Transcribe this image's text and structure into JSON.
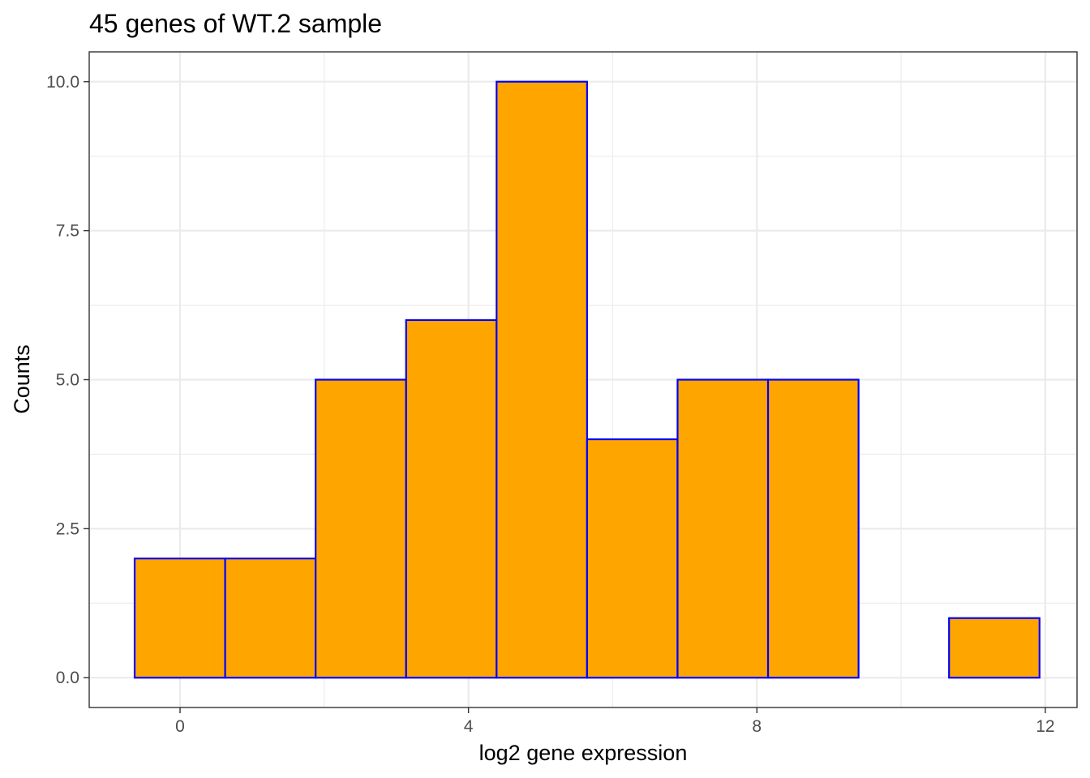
{
  "chart_data": {
    "type": "bar",
    "subtype": "histogram",
    "title": "45 genes of WT.2 sample",
    "xlabel": "log2 gene expression",
    "ylabel": "Counts",
    "x_ticks": [
      0,
      4,
      8,
      12
    ],
    "x_tick_labels": [
      "0",
      "4",
      "8",
      "12"
    ],
    "y_ticks": [
      0,
      2.5,
      5,
      7.5,
      10
    ],
    "y_tick_labels": [
      "0.0",
      "2.5",
      "5.0",
      "7.5",
      "10.0"
    ],
    "xlim": [
      -1.26,
      12.44
    ],
    "ylim": [
      -0.5,
      10.5
    ],
    "grid": true,
    "theme": "bw",
    "bin_width": 1.255,
    "bins": [
      {
        "x_start": -0.63,
        "x_end": 0.625,
        "count": 2
      },
      {
        "x_start": 0.625,
        "x_end": 1.88,
        "count": 2
      },
      {
        "x_start": 1.88,
        "x_end": 3.135,
        "count": 5
      },
      {
        "x_start": 3.135,
        "x_end": 4.39,
        "count": 6
      },
      {
        "x_start": 4.39,
        "x_end": 5.645,
        "count": 10
      },
      {
        "x_start": 5.645,
        "x_end": 6.9,
        "count": 4
      },
      {
        "x_start": 6.9,
        "x_end": 8.155,
        "count": 5
      },
      {
        "x_start": 8.155,
        "x_end": 9.41,
        "count": 5
      },
      {
        "x_start": 9.41,
        "x_end": 10.665,
        "count": 0
      },
      {
        "x_start": 10.665,
        "x_end": 11.92,
        "count": 1
      }
    ],
    "colors": {
      "bar_fill": "#FFA500",
      "bar_outline": "#0000FF"
    }
  }
}
